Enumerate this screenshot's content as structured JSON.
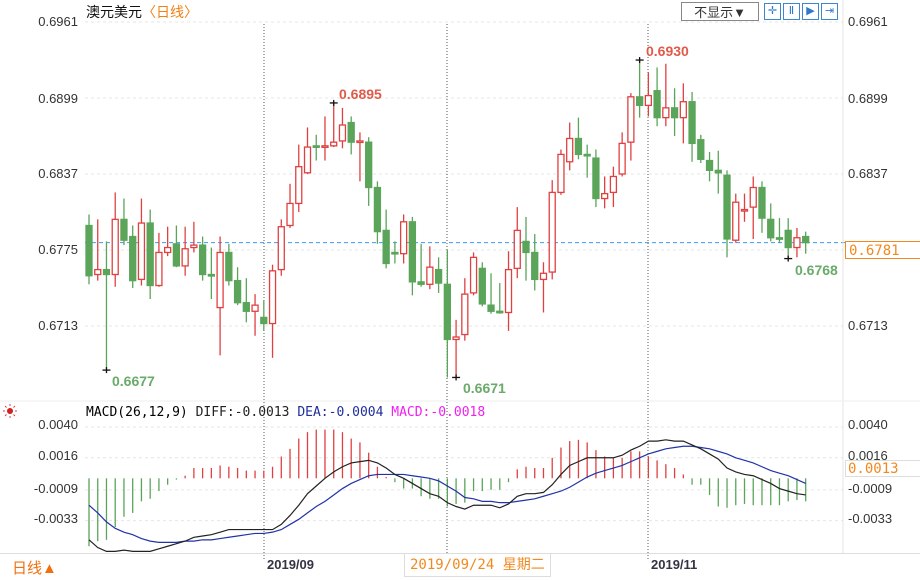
{
  "header": {
    "symbol": "澳元美元",
    "period_tag": "〈日线〉",
    "hide_button": "不显示▼",
    "toolbar_icons": [
      "crosshair-icon",
      "zoom-range-icon",
      "play-step-icon",
      "jump-end-icon"
    ]
  },
  "price_axis": {
    "ticks": [
      "0.6961",
      "0.6899",
      "0.6837",
      "0.6775",
      "0.6713"
    ],
    "current": "0.6781"
  },
  "macd_axis": {
    "ticks": [
      "0.0040",
      "0.0016",
      "-0.0009",
      "-0.0033"
    ],
    "current": "0.0013"
  },
  "macd_legend": {
    "name": "MACD(26,12,9)",
    "diff": "DIFF:-0.0013",
    "dea": "DEA:-0.0004",
    "macd": "MACD:-0.0018"
  },
  "annotations": {
    "low1": "0.6677",
    "high1": "0.6895",
    "low2": "0.6671",
    "high2": "0.6930",
    "low3": "0.6768"
  },
  "footer": {
    "period": "日线▲",
    "date1": "2019/09",
    "cursor_date": "2019/09/24 星期二",
    "date2": "2019/11"
  },
  "colors": {
    "up": "#e04040",
    "down": "#5aa55a",
    "diff": "#222222",
    "dea": "#2233aa",
    "price_line": "#3a9af0",
    "accent": "#f08a20"
  },
  "chart_data": [
    {
      "type": "candlestick",
      "title": "澳元美元",
      "ylim": [
        0.665,
        0.6961
      ],
      "price_ticks": [
        0.6961,
        0.6899,
        0.6837,
        0.6775,
        0.6713
      ],
      "last_price": 0.6781,
      "ohlc": [
        [
          0.6795,
          0.6804,
          0.6747,
          0.6754
        ],
        [
          0.6755,
          0.68,
          0.675,
          0.6759
        ],
        [
          0.6759,
          0.6782,
          0.6677,
          0.6755
        ],
        [
          0.6755,
          0.6822,
          0.6745,
          0.68
        ],
        [
          0.68,
          0.6817,
          0.6779,
          0.6783
        ],
        [
          0.6786,
          0.6795,
          0.6744,
          0.675
        ],
        [
          0.6751,
          0.6817,
          0.6746,
          0.6797
        ],
        [
          0.6797,
          0.6808,
          0.6735,
          0.6746
        ],
        [
          0.6746,
          0.6789,
          0.6745,
          0.6773
        ],
        [
          0.6773,
          0.6794,
          0.677,
          0.6777
        ],
        [
          0.678,
          0.6795,
          0.6761,
          0.6762
        ],
        [
          0.6762,
          0.6794,
          0.6754,
          0.6776
        ],
        [
          0.6777,
          0.6798,
          0.6773,
          0.6779
        ],
        [
          0.6779,
          0.6786,
          0.675,
          0.6755
        ],
        [
          0.6755,
          0.6777,
          0.6735,
          0.6754
        ],
        [
          0.6728,
          0.6786,
          0.6689,
          0.6773
        ],
        [
          0.6773,
          0.678,
          0.6746,
          0.675
        ],
        [
          0.675,
          0.6761,
          0.673,
          0.6732
        ],
        [
          0.6732,
          0.6752,
          0.6716,
          0.6725
        ],
        [
          0.6725,
          0.6739,
          0.6705,
          0.673
        ],
        [
          0.672,
          0.6734,
          0.6709,
          0.6715
        ],
        [
          0.6715,
          0.6763,
          0.6687,
          0.6758
        ],
        [
          0.6759,
          0.68,
          0.6754,
          0.6794
        ],
        [
          0.6795,
          0.6829,
          0.6793,
          0.6813
        ],
        [
          0.6813,
          0.6861,
          0.6806,
          0.6843
        ],
        [
          0.6838,
          0.6875,
          0.6837,
          0.6859
        ],
        [
          0.686,
          0.6869,
          0.6848,
          0.6859
        ],
        [
          0.6859,
          0.6884,
          0.6848,
          0.686
        ],
        [
          0.686,
          0.6895,
          0.6859,
          0.6863
        ],
        [
          0.6864,
          0.6891,
          0.6858,
          0.6877
        ],
        [
          0.6879,
          0.6884,
          0.6853,
          0.6863
        ],
        [
          0.6863,
          0.6871,
          0.6831,
          0.6864
        ],
        [
          0.6863,
          0.6867,
          0.6811,
          0.6826
        ],
        [
          0.6826,
          0.6831,
          0.678,
          0.679
        ],
        [
          0.6791,
          0.6808,
          0.676,
          0.6764
        ],
        [
          0.6773,
          0.6782,
          0.6764,
          0.6772
        ],
        [
          0.6772,
          0.6804,
          0.6764,
          0.6798
        ],
        [
          0.6798,
          0.6802,
          0.6738,
          0.6749
        ],
        [
          0.6749,
          0.678,
          0.6745,
          0.6747
        ],
        [
          0.6747,
          0.6778,
          0.6743,
          0.6761
        ],
        [
          0.6759,
          0.6769,
          0.674,
          0.6748
        ],
        [
          0.6747,
          0.6775,
          0.6671,
          0.6702
        ],
        [
          0.6702,
          0.6718,
          0.6671,
          0.6704
        ],
        [
          0.6706,
          0.6752,
          0.6701,
          0.6739
        ],
        [
          0.674,
          0.6773,
          0.6738,
          0.6769
        ],
        [
          0.676,
          0.6765,
          0.6729,
          0.6731
        ],
        [
          0.673,
          0.6756,
          0.6723,
          0.6725
        ],
        [
          0.6725,
          0.6748,
          0.6723,
          0.6724
        ],
        [
          0.6724,
          0.6774,
          0.6709,
          0.6759
        ],
        [
          0.676,
          0.681,
          0.6752,
          0.6791
        ],
        [
          0.6782,
          0.6802,
          0.675,
          0.6773
        ],
        [
          0.6773,
          0.6788,
          0.6742,
          0.6751
        ],
        [
          0.6751,
          0.6765,
          0.6724,
          0.6756
        ],
        [
          0.6757,
          0.6832,
          0.6751,
          0.6822
        ],
        [
          0.6822,
          0.6857,
          0.682,
          0.6853
        ],
        [
          0.6847,
          0.6879,
          0.684,
          0.6866
        ],
        [
          0.6866,
          0.6883,
          0.6849,
          0.6853
        ],
        [
          0.6853,
          0.6861,
          0.6834,
          0.6852
        ],
        [
          0.685,
          0.6857,
          0.681,
          0.6817
        ],
        [
          0.6817,
          0.6835,
          0.6809,
          0.6821
        ],
        [
          0.6822,
          0.6843,
          0.681,
          0.6835
        ],
        [
          0.6837,
          0.6871,
          0.6835,
          0.6862
        ],
        [
          0.6863,
          0.6903,
          0.6848,
          0.69
        ],
        [
          0.69,
          0.693,
          0.6883,
          0.6893
        ],
        [
          0.6893,
          0.692,
          0.6884,
          0.6901
        ],
        [
          0.6905,
          0.6924,
          0.6876,
          0.6883
        ],
        [
          0.6883,
          0.6927,
          0.6876,
          0.6891
        ],
        [
          0.6891,
          0.6907,
          0.6868,
          0.6883
        ],
        [
          0.6883,
          0.6911,
          0.6862,
          0.6896
        ],
        [
          0.6896,
          0.6904,
          0.6847,
          0.6862
        ],
        [
          0.6865,
          0.6869,
          0.6846,
          0.6849
        ],
        [
          0.6848,
          0.6855,
          0.6831,
          0.684
        ],
        [
          0.684,
          0.6856,
          0.6821,
          0.6838
        ],
        [
          0.6836,
          0.684,
          0.6769,
          0.6784
        ],
        [
          0.6783,
          0.6821,
          0.6781,
          0.6814
        ],
        [
          0.6808,
          0.6821,
          0.6798,
          0.6808
        ],
        [
          0.681,
          0.6835,
          0.6784,
          0.6826
        ],
        [
          0.6826,
          0.6831,
          0.6789,
          0.6801
        ],
        [
          0.68,
          0.6813,
          0.6782,
          0.6785
        ],
        [
          0.6785,
          0.6801,
          0.6781,
          0.6784
        ],
        [
          0.6791,
          0.6801,
          0.6768,
          0.6777
        ],
        [
          0.6777,
          0.6793,
          0.6769,
          0.6785
        ],
        [
          0.6786,
          0.679,
          0.6772,
          0.6781
        ]
      ]
    },
    {
      "type": "macd",
      "ylim": [
        -0.006,
        0.0045
      ],
      "ticks": [
        0.004,
        0.0016,
        -0.0009,
        -0.0033
      ],
      "hist": [
        -0.0053,
        -0.0049,
        -0.0048,
        -0.0038,
        -0.003,
        -0.0027,
        -0.0018,
        -0.0016,
        -0.001,
        -0.0005,
        -0.0001,
        0.0002,
        0.0008,
        0.0008,
        0.0008,
        0.001,
        0.0009,
        0.0008,
        0.0006,
        0.0006,
        0.0006,
        0.0009,
        0.0017,
        0.0023,
        0.0031,
        0.0036,
        0.0038,
        0.0038,
        0.0038,
        0.0036,
        0.0031,
        0.0028,
        0.002,
        0.0009,
        0.0001,
        -0.0003,
        -0.0008,
        -0.0008,
        -0.0014,
        -0.0016,
        -0.0016,
        -0.0022,
        -0.002,
        -0.0019,
        -0.001,
        -0.001,
        -0.0009,
        -0.0009,
        -0.0003,
        0.0007,
        0.0009,
        0.0008,
        0.0008,
        0.0016,
        0.0024,
        0.0029,
        0.003,
        0.0028,
        0.0022,
        0.0017,
        0.0016,
        0.0016,
        0.0021,
        0.0021,
        0.0017,
        0.0014,
        0.0011,
        0.0008,
        0.0003,
        -0.0005,
        -0.0005,
        -0.0013,
        -0.0022,
        -0.0023,
        -0.0021,
        -0.002,
        -0.0021,
        -0.0021,
        -0.0021,
        -0.0021,
        -0.0018,
        -0.0017,
        -0.0018
      ],
      "diff": [
        -0.0048,
        -0.0054,
        -0.0057,
        -0.0057,
        -0.0056,
        -0.0057,
        -0.0057,
        -0.0057,
        -0.0055,
        -0.0053,
        -0.0051,
        -0.0049,
        -0.0046,
        -0.0045,
        -0.0044,
        -0.0042,
        -0.004,
        -0.004,
        -0.004,
        -0.004,
        -0.004,
        -0.004,
        -0.0036,
        -0.0029,
        -0.0021,
        -0.0012,
        -0.0006,
        0.0,
        0.0005,
        0.0009,
        0.0012,
        0.0013,
        0.0014,
        0.0012,
        0.0008,
        0.0003,
        0.0,
        -0.0004,
        -0.0008,
        -0.0012,
        -0.0014,
        -0.0019,
        -0.0022,
        -0.0024,
        -0.0021,
        -0.0021,
        -0.0021,
        -0.0023,
        -0.002,
        -0.0014,
        -0.0012,
        -0.0012,
        -0.0011,
        -0.0005,
        0.0003,
        0.001,
        0.0013,
        0.0016,
        0.0016,
        0.0016,
        0.0016,
        0.0018,
        0.0022,
        0.0025,
        0.0029,
        0.0029,
        0.003,
        0.0029,
        0.0029,
        0.0026,
        0.0023,
        0.0019,
        0.0015,
        0.0008,
        0.0005,
        0.0003,
        0.0002,
        -0.0001,
        -0.0004,
        -0.0008,
        -0.001,
        -0.0012,
        -0.0013
      ],
      "dea": [
        -0.0021,
        -0.0027,
        -0.0034,
        -0.0039,
        -0.0042,
        -0.0044,
        -0.0047,
        -0.0049,
        -0.005,
        -0.005,
        -0.005,
        -0.0049,
        -0.0049,
        -0.0048,
        -0.0048,
        -0.0047,
        -0.0046,
        -0.0045,
        -0.0044,
        -0.0043,
        -0.0043,
        -0.0042,
        -0.004,
        -0.0036,
        -0.0032,
        -0.0027,
        -0.0022,
        -0.0018,
        -0.0013,
        -0.0008,
        -0.0004,
        -0.0001,
        0.0002,
        0.0003,
        0.0003,
        0.0003,
        0.0003,
        0.0002,
        0.0001,
        0.0,
        -0.0002,
        -0.0006,
        -0.001,
        -0.0015,
        -0.0016,
        -0.0018,
        -0.0018,
        -0.0019,
        -0.0019,
        -0.0018,
        -0.0017,
        -0.0016,
        -0.0014,
        -0.0012,
        -0.001,
        -0.0007,
        -0.0003,
        0.0001,
        0.0004,
        0.0006,
        0.0008,
        0.001,
        0.0013,
        0.0016,
        0.0019,
        0.0021,
        0.0023,
        0.0024,
        0.0025,
        0.0025,
        0.0024,
        0.0023,
        0.0021,
        0.0019,
        0.0016,
        0.0014,
        0.0012,
        0.0009,
        0.0006,
        0.0004,
        0.0002,
        -0.0001,
        -0.0004
      ]
    }
  ]
}
